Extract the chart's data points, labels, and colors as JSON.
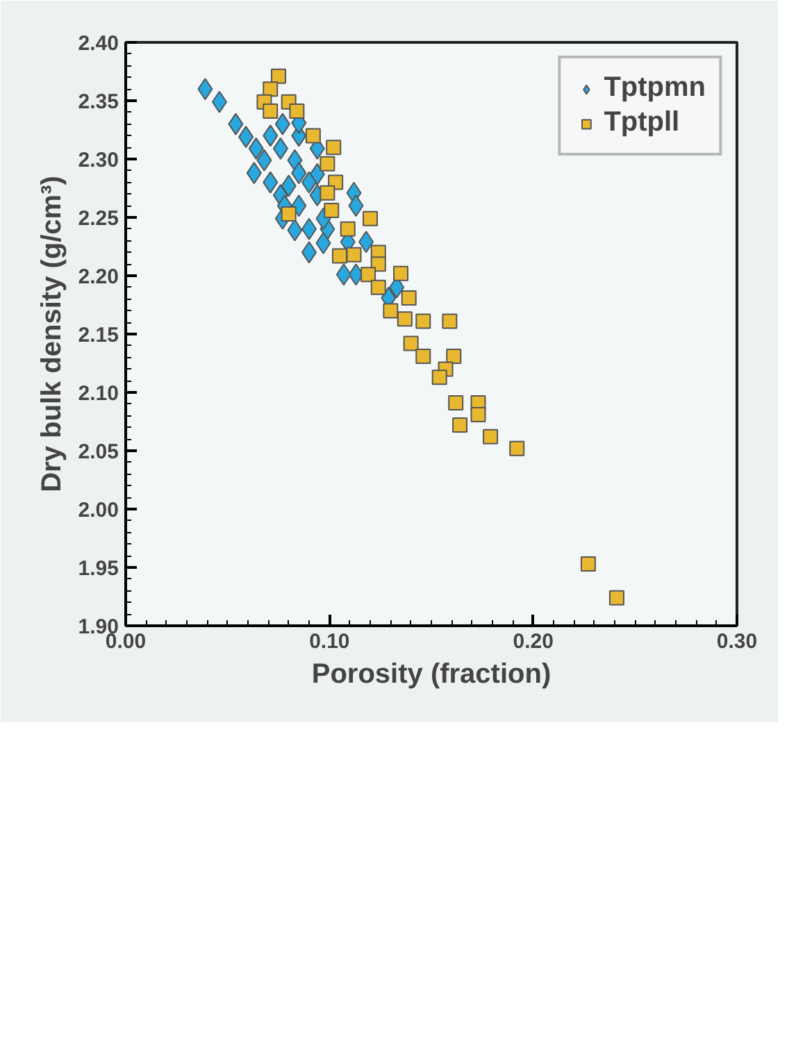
{
  "chart_data": {
    "type": "scatter",
    "xlabel": "Porosity (fraction)",
    "ylabel": "Dry bulk density (g/cm³)",
    "xlim": [
      0,
      0.3
    ],
    "ylim": [
      1.9,
      2.4
    ],
    "xticks": [
      {
        "value": 0,
        "label": "0.00"
      },
      {
        "value": 0.1,
        "label": "0.10"
      },
      {
        "value": 0.2,
        "label": "0.20"
      },
      {
        "value": 0.3,
        "label": "0.30"
      }
    ],
    "yticks": [
      {
        "value": 1.9,
        "label": "1.90"
      },
      {
        "value": 1.95,
        "label": "1.95"
      },
      {
        "value": 2.0,
        "label": "2.00"
      },
      {
        "value": 2.05,
        "label": "2.05"
      },
      {
        "value": 2.1,
        "label": "2.10"
      },
      {
        "value": 2.15,
        "label": "2.15"
      },
      {
        "value": 2.2,
        "label": "2.20"
      },
      {
        "value": 2.25,
        "label": "2.25"
      },
      {
        "value": 2.3,
        "label": "2.30"
      },
      {
        "value": 2.35,
        "label": "2.35"
      },
      {
        "value": 2.4,
        "label": "2.40"
      }
    ],
    "grid": false,
    "legend": "top right",
    "series": [
      {
        "name": "Tptpmn",
        "color": "#29a8e0",
        "marker": "diamond",
        "x": [
          0.039,
          0.046,
          0.054,
          0.059,
          0.064,
          0.068,
          0.063,
          0.071,
          0.071,
          0.077,
          0.085,
          0.076,
          0.083,
          0.085,
          0.08,
          0.076,
          0.078,
          0.077,
          0.083,
          0.085,
          0.094,
          0.094,
          0.094,
          0.09,
          0.09,
          0.099,
          0.097,
          0.09,
          0.097,
          0.112,
          0.113,
          0.118,
          0.109,
          0.113,
          0.107,
          0.133,
          0.129,
          0.085
        ],
        "values": [
          2.36,
          2.349,
          2.33,
          2.319,
          2.309,
          2.299,
          2.288,
          2.28,
          2.32,
          2.33,
          2.32,
          2.309,
          2.299,
          2.288,
          2.277,
          2.269,
          2.26,
          2.249,
          2.239,
          2.26,
          2.269,
          2.287,
          2.309,
          2.28,
          2.24,
          2.24,
          2.228,
          2.22,
          2.249,
          2.271,
          2.26,
          2.229,
          2.229,
          2.201,
          2.201,
          2.19,
          2.181,
          2.331
        ]
      },
      {
        "name": "Tptpll",
        "color": "#e8b830",
        "marker": "square",
        "x": [
          0.075,
          0.071,
          0.068,
          0.071,
          0.08,
          0.084,
          0.092,
          0.102,
          0.099,
          0.103,
          0.099,
          0.101,
          0.12,
          0.109,
          0.124,
          0.124,
          0.112,
          0.105,
          0.119,
          0.124,
          0.135,
          0.139,
          0.13,
          0.137,
          0.146,
          0.159,
          0.14,
          0.08,
          0.161,
          0.157,
          0.154,
          0.173,
          0.173,
          0.162,
          0.164,
          0.179,
          0.192,
          0.227,
          0.241,
          0.146
        ],
        "values": [
          2.371,
          2.36,
          2.349,
          2.341,
          2.349,
          2.341,
          2.32,
          2.31,
          2.296,
          2.28,
          2.271,
          2.256,
          2.249,
          2.24,
          2.22,
          2.21,
          2.218,
          2.217,
          2.201,
          2.19,
          2.202,
          2.181,
          2.17,
          2.163,
          2.161,
          2.161,
          2.142,
          2.253,
          2.131,
          2.12,
          2.113,
          2.091,
          2.081,
          2.091,
          2.072,
          2.062,
          2.052,
          1.953,
          1.924,
          2.131
        ]
      }
    ]
  }
}
